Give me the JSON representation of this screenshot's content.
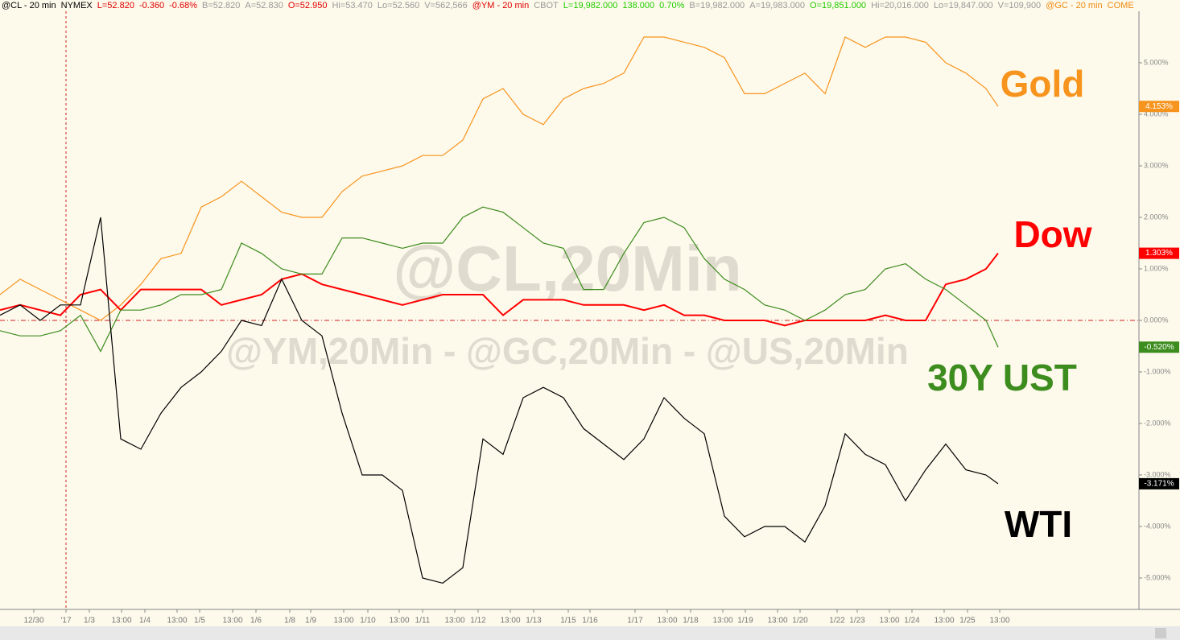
{
  "chart_data": {
    "type": "line",
    "header": [
      {
        "text": "@CL - 20 min",
        "color": "#000000"
      },
      {
        "text": "NYMEX",
        "color": "#000000"
      },
      {
        "text": "L=52.820",
        "color": "#e00000"
      },
      {
        "text": "-0.360",
        "color": "#e00000"
      },
      {
        "text": "-0.68%",
        "color": "#e00000"
      },
      {
        "text": "B=52.820",
        "color": "#999999"
      },
      {
        "text": "A=52.830",
        "color": "#999999"
      },
      {
        "text": "O=52.950",
        "color": "#e00000"
      },
      {
        "text": "Hi=53.470",
        "color": "#999999"
      },
      {
        "text": "Lo=52.560",
        "color": "#999999"
      },
      {
        "text": "V=562,566",
        "color": "#999999"
      },
      {
        "text": "@YM - 20 min",
        "color": "#e00000"
      },
      {
        "text": "CBOT",
        "color": "#999999"
      },
      {
        "text": "L=19,982.000",
        "color": "#22cc00"
      },
      {
        "text": "138.000",
        "color": "#22cc00"
      },
      {
        "text": "0.70%",
        "color": "#22cc00"
      },
      {
        "text": "B=19,982.000",
        "color": "#999999"
      },
      {
        "text": "A=19,983.000",
        "color": "#999999"
      },
      {
        "text": "O=19,851.000",
        "color": "#22cc00"
      },
      {
        "text": "Hi=20,016.000",
        "color": "#999999"
      },
      {
        "text": "Lo=19,847.000",
        "color": "#999999"
      },
      {
        "text": "V=109,900",
        "color": "#999999"
      },
      {
        "text": "@GC - 20 min",
        "color": "#f08a10"
      },
      {
        "text": "COME",
        "color": "#f08a10"
      }
    ],
    "watermark": "@CL,20Min",
    "watermark_sub": "@YM,20Min - @GC,20Min - @US,20Min",
    "x": [
      0,
      25,
      50,
      75,
      100,
      125,
      150,
      175,
      200,
      225,
      250,
      275,
      300,
      325,
      350,
      375,
      400,
      425,
      450,
      475,
      500,
      525,
      550,
      575,
      600,
      625,
      650,
      675,
      700,
      725,
      750,
      775,
      800,
      825,
      850,
      875,
      900,
      925,
      950,
      975,
      1000,
      1025,
      1050,
      1075,
      1100,
      1125,
      1150,
      1175,
      1200,
      1225,
      1240
    ],
    "xlim": [
      0,
      1415
    ],
    "xticks": [
      {
        "value": 42,
        "label": "12/30"
      },
      {
        "value": 82,
        "label": "'17"
      },
      {
        "value": 111,
        "label": "1/3"
      },
      {
        "value": 151,
        "label": "13:00"
      },
      {
        "value": 180,
        "label": "1/4"
      },
      {
        "value": 220,
        "label": "13:00"
      },
      {
        "value": 248,
        "label": "1/5"
      },
      {
        "value": 289,
        "label": "13:00"
      },
      {
        "value": 318,
        "label": "1/6"
      },
      {
        "value": 360,
        "label": "1/8"
      },
      {
        "value": 386,
        "label": "1/9"
      },
      {
        "value": 427,
        "label": "13:00"
      },
      {
        "value": 457,
        "label": "1/10"
      },
      {
        "value": 496,
        "label": "13:00"
      },
      {
        "value": 525,
        "label": "1/11"
      },
      {
        "value": 565,
        "label": "13:00"
      },
      {
        "value": 594,
        "label": "1/12"
      },
      {
        "value": 634,
        "label": "13:00"
      },
      {
        "value": 663,
        "label": "1/13"
      },
      {
        "value": 706,
        "label": "1/15"
      },
      {
        "value": 733,
        "label": "1/16"
      },
      {
        "value": 789,
        "label": "1/17"
      },
      {
        "value": 829,
        "label": "13:00"
      },
      {
        "value": 858,
        "label": "1/18"
      },
      {
        "value": 898,
        "label": "13:00"
      },
      {
        "value": 926,
        "label": "1/19"
      },
      {
        "value": 966,
        "label": "13:00"
      },
      {
        "value": 994,
        "label": "1/20"
      },
      {
        "value": 1040,
        "label": "1/22"
      },
      {
        "value": 1065,
        "label": "1/23"
      },
      {
        "value": 1105,
        "label": "13:00"
      },
      {
        "value": 1133,
        "label": "1/24"
      },
      {
        "value": 1173,
        "label": "13:00"
      },
      {
        "value": 1202,
        "label": "1/25"
      },
      {
        "value": 1242,
        "label": "13:00"
      }
    ],
    "year_marker": 82,
    "ylim": [
      -5.61,
      6.0
    ],
    "yticks": [
      {
        "value": -5,
        "label": "-5.000%"
      },
      {
        "value": -4,
        "label": "-4.000%"
      },
      {
        "value": -3,
        "label": "-3.000%"
      },
      {
        "value": -2,
        "label": "-2.000%"
      },
      {
        "value": -1,
        "label": "-1.000%"
      },
      {
        "value": 0,
        "label": "0.000%"
      },
      {
        "value": 1,
        "label": "1.000%"
      },
      {
        "value": 2,
        "label": "2.000%"
      },
      {
        "value": 3,
        "label": "3.000%"
      },
      {
        "value": 4,
        "label": "4.000%"
      },
      {
        "value": 5,
        "label": "5.000%"
      }
    ],
    "series": [
      {
        "name": "Gold",
        "color": "#f7941d",
        "values": [
          0.5,
          0.8,
          0.6,
          0.4,
          0.2,
          0.0,
          0.3,
          0.7,
          1.2,
          1.3,
          2.2,
          2.4,
          2.7,
          2.4,
          2.1,
          2.0,
          2.0,
          2.5,
          2.8,
          2.9,
          3.0,
          3.2,
          3.2,
          3.5,
          4.3,
          4.5,
          4.0,
          3.8,
          4.3,
          4.5,
          4.6,
          4.8,
          5.5,
          5.5,
          5.4,
          5.3,
          5.1,
          4.4,
          4.4,
          4.6,
          4.8,
          4.4,
          5.5,
          5.3,
          5.5,
          5.5,
          5.4,
          5.0,
          4.8,
          4.5,
          4.153
        ],
        "value_labels": [
          null,
          null,
          null,
          null,
          null,
          null,
          null,
          null,
          null,
          null,
          null,
          null,
          null,
          null,
          null,
          null,
          null,
          null,
          null,
          null,
          null,
          null,
          null,
          null,
          null,
          null,
          null,
          null,
          null,
          null,
          null,
          null,
          null,
          null,
          null,
          null,
          null,
          null,
          null,
          null,
          null,
          null,
          null,
          null,
          null,
          null,
          null,
          null,
          null,
          null,
          "4.153%"
        ]
      },
      {
        "name": "Dow",
        "color": "#ff0000",
        "values": [
          0.2,
          0.3,
          0.2,
          0.1,
          0.5,
          0.6,
          0.2,
          0.6,
          0.6,
          0.6,
          0.6,
          0.3,
          0.4,
          0.5,
          0.8,
          0.9,
          0.7,
          0.6,
          0.5,
          0.4,
          0.3,
          0.4,
          0.5,
          0.5,
          0.5,
          0.1,
          0.4,
          0.4,
          0.4,
          0.3,
          0.3,
          0.3,
          0.2,
          0.3,
          0.1,
          0.1,
          0.0,
          0.0,
          0.0,
          -0.1,
          0.0,
          0.0,
          0.0,
          0.0,
          0.1,
          0.0,
          0.0,
          0.7,
          0.8,
          1.0,
          1.303
        ],
        "value_labels": [
          null,
          null,
          null,
          null,
          null,
          null,
          null,
          null,
          null,
          null,
          null,
          null,
          null,
          null,
          null,
          null,
          null,
          null,
          null,
          null,
          null,
          null,
          null,
          null,
          null,
          null,
          null,
          null,
          null,
          null,
          null,
          null,
          null,
          null,
          null,
          null,
          null,
          null,
          null,
          null,
          null,
          null,
          null,
          null,
          null,
          null,
          null,
          null,
          null,
          null,
          "1.303%"
        ]
      },
      {
        "name": "30Y UST",
        "color": "#3c8c1e",
        "values": [
          -0.2,
          -0.3,
          -0.3,
          -0.2,
          0.1,
          -0.6,
          0.2,
          0.2,
          0.3,
          0.5,
          0.5,
          0.6,
          1.5,
          1.3,
          1.0,
          0.9,
          0.9,
          1.6,
          1.6,
          1.5,
          1.4,
          1.5,
          1.5,
          2.0,
          2.2,
          2.1,
          1.8,
          1.5,
          1.4,
          0.6,
          0.6,
          1.3,
          1.9,
          2.0,
          1.8,
          1.2,
          0.8,
          0.6,
          0.3,
          0.2,
          0.0,
          0.2,
          0.5,
          0.6,
          1.0,
          1.1,
          0.8,
          0.6,
          0.3,
          0.0,
          -0.52
        ],
        "value_labels": [
          null,
          null,
          null,
          null,
          null,
          null,
          null,
          null,
          null,
          null,
          null,
          null,
          null,
          null,
          null,
          null,
          null,
          null,
          null,
          null,
          null,
          null,
          null,
          null,
          null,
          null,
          null,
          null,
          null,
          null,
          null,
          null,
          null,
          null,
          null,
          null,
          null,
          null,
          null,
          null,
          null,
          null,
          null,
          null,
          null,
          null,
          null,
          null,
          null,
          null,
          "-0.520%"
        ]
      },
      {
        "name": "WTI",
        "color": "#000000",
        "values": [
          0.1,
          0.3,
          0.0,
          0.3,
          0.3,
          2.0,
          -2.3,
          -2.5,
          -1.8,
          -1.3,
          -1.0,
          -0.6,
          0.0,
          -0.1,
          0.8,
          0.0,
          -0.3,
          -1.8,
          -3.0,
          -3.0,
          -3.3,
          -5.0,
          -5.1,
          -4.8,
          -2.3,
          -2.6,
          -1.5,
          -1.3,
          -1.5,
          -2.1,
          -2.4,
          -2.7,
          -2.3,
          -1.5,
          -1.9,
          -2.2,
          -3.8,
          -4.2,
          -4.0,
          -4.0,
          -4.3,
          -3.6,
          -2.2,
          -2.6,
          -2.8,
          -3.5,
          -2.9,
          -2.4,
          -2.9,
          -3.0,
          -3.171
        ],
        "value_labels": [
          null,
          null,
          null,
          null,
          null,
          null,
          null,
          null,
          null,
          null,
          null,
          null,
          null,
          null,
          null,
          null,
          null,
          null,
          null,
          null,
          null,
          null,
          null,
          null,
          null,
          null,
          null,
          null,
          null,
          null,
          null,
          null,
          null,
          null,
          null,
          null,
          null,
          null,
          null,
          null,
          null,
          null,
          null,
          null,
          null,
          null,
          null,
          null,
          null,
          null,
          "-3.171%"
        ]
      }
    ]
  }
}
